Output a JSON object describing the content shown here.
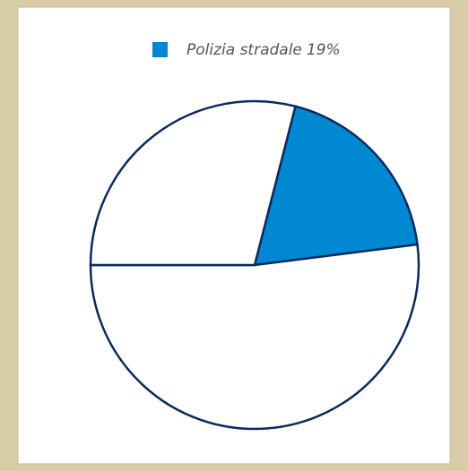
{
  "chart_data": {
    "type": "pie",
    "categories": [
      "Polizia stradale",
      null,
      null
    ],
    "values": [
      19,
      52,
      29
    ],
    "value_labels": [
      "19%",
      null,
      null
    ],
    "colors": [
      "#0088d2",
      "#ffffff",
      "#ffffff"
    ],
    "legend": "top"
  }
}
